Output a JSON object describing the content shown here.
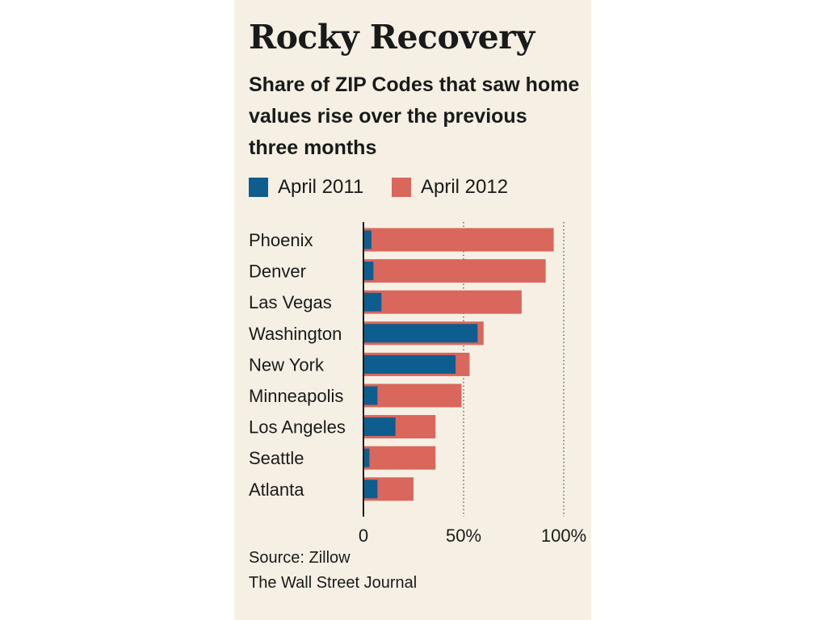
{
  "title": "Rocky Recovery",
  "subtitle": "Share of ZIP Codes that saw home values rise over the previous three months",
  "source": "Source: Zillow",
  "credit": "The Wall Street Journal",
  "colors": {
    "background": "#f6f0e4",
    "april_2011": "#0e5d8f",
    "april_2012": "#d9675c"
  },
  "legend": [
    {
      "label": "April 2011",
      "color": "#0e5d8f"
    },
    {
      "label": "April 2012",
      "color": "#d9675c"
    }
  ],
  "chart_data": {
    "type": "bar",
    "orientation": "horizontal",
    "overlapping": true,
    "categories": [
      "Phoenix",
      "Denver",
      "Las Vegas",
      "Washington",
      "New York",
      "Minneapolis",
      "Los Angeles",
      "Seattle",
      "Atlanta"
    ],
    "series": [
      {
        "name": "April 2011",
        "values": [
          4,
          5,
          9,
          57,
          46,
          7,
          16,
          3,
          7
        ]
      },
      {
        "name": "April 2012",
        "values": [
          95,
          91,
          79,
          60,
          53,
          49,
          36,
          36,
          25
        ]
      }
    ],
    "xlim": [
      0,
      100
    ],
    "xticks": [
      {
        "value": 0,
        "label": "0"
      },
      {
        "value": 50,
        "label": "50%"
      },
      {
        "value": 100,
        "label": "100%"
      }
    ],
    "gridlines": "dotted vertical at 50% and 100%",
    "legend_position": "top"
  }
}
